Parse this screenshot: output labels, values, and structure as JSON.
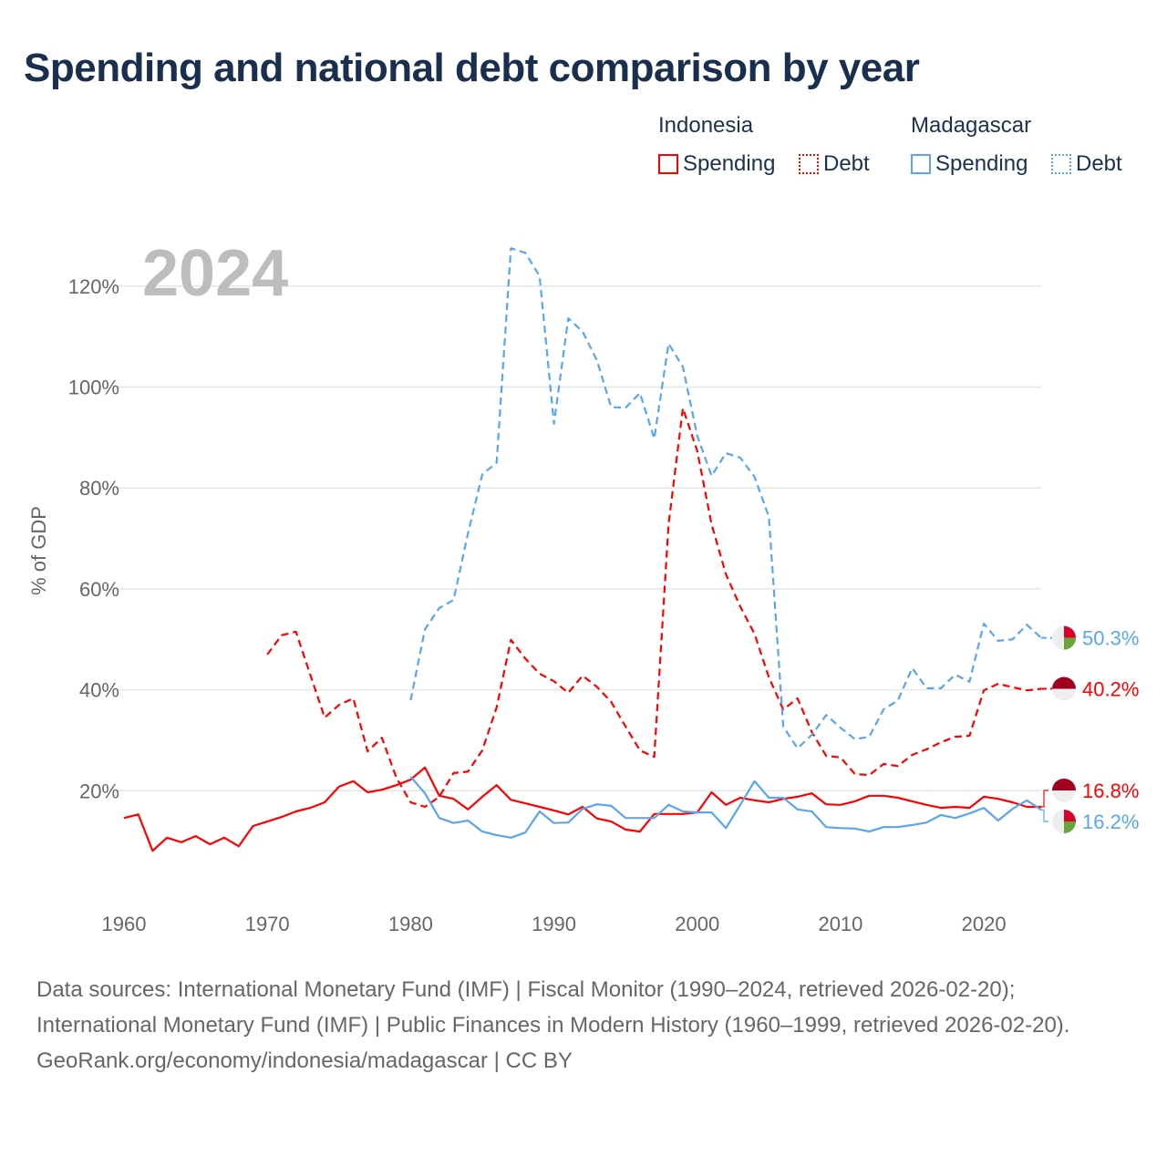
{
  "title": "Spending and national debt comparison by year",
  "legend": {
    "groups": [
      {
        "country": "Indonesia",
        "spending": "Spending",
        "debt": "Debt",
        "color": "#ff0000"
      },
      {
        "country": "Madagascar",
        "spending": "Spending",
        "debt": "Debt",
        "color": "#5aa5ee"
      }
    ]
  },
  "year_watermark": "2024",
  "chart_data": {
    "type": "line",
    "title": "Spending and national debt comparison by year",
    "xlabel": "",
    "ylabel": "% of GDP",
    "xlim": [
      1960,
      2024
    ],
    "ylim": [
      0,
      125
    ],
    "x_ticks": [
      "1960",
      "1970",
      "1980",
      "1990",
      "2000",
      "2010",
      "2020"
    ],
    "x_tick_values": [
      1960,
      1970,
      1980,
      1990,
      2000,
      2010,
      2020
    ],
    "y_ticks": [
      "20%",
      "40%",
      "60%",
      "80%",
      "100%",
      "120%"
    ],
    "y_tick_values": [
      20,
      40,
      60,
      80,
      100,
      120
    ],
    "grid": true,
    "legend_position": "top-right",
    "series": [
      {
        "name": "Indonesia Spending",
        "color": "#ff0000",
        "dash": false,
        "start": 1960,
        "end_label": "16.8%",
        "flag": "indonesia",
        "values": [
          14.6,
          15.3,
          8.1,
          10.7,
          9.8,
          11.0,
          9.4,
          10.7,
          9.0,
          13.0,
          13.9,
          14.8,
          15.9,
          16.6,
          17.7,
          20.8,
          21.9,
          19.7,
          20.2,
          21.1,
          22.2,
          24.6,
          19.0,
          18.4,
          16.3,
          18.8,
          21.1,
          18.2,
          17.5,
          16.8,
          16.1,
          15.3,
          16.8,
          14.5,
          13.9,
          12.3,
          11.9,
          15.4,
          15.4,
          15.4,
          15.7,
          19.7,
          17.2,
          18.6,
          18.1,
          17.7,
          18.4,
          18.8,
          19.5,
          17.3,
          17.2,
          17.9,
          19.0,
          19.0,
          18.6,
          17.9,
          17.2,
          16.6,
          16.8,
          16.6,
          18.8,
          18.4,
          17.7,
          16.8,
          16.8
        ]
      },
      {
        "name": "Indonesia Debt",
        "color": "#ff0000",
        "dash": true,
        "start": 1970,
        "end_label": "40.2%",
        "flag": "indonesia",
        "values": [
          47.0,
          50.8,
          51.5,
          43.0,
          34.5,
          37.0,
          38.3,
          27.8,
          30.5,
          22.6,
          17.7,
          16.8,
          18.8,
          23.5,
          23.8,
          28.0,
          36.5,
          49.9,
          46.2,
          43.2,
          41.7,
          39.4,
          42.8,
          40.6,
          37.6,
          32.7,
          28.0,
          26.7,
          72.8,
          95.8,
          87.3,
          72.8,
          62.9,
          56.5,
          51.1,
          42.5,
          36.1,
          38.3,
          31.6,
          26.9,
          26.6,
          23.3,
          23.1,
          25.3,
          24.9,
          27.1,
          28.2,
          29.6,
          30.7,
          30.9,
          39.9,
          41.2,
          40.5,
          39.9,
          40.2
        ]
      },
      {
        "name": "Madagascar Spending",
        "color": "#5aa5ee",
        "dash": false,
        "start": 1980,
        "end_label": "16.2%",
        "flag": "madagascar",
        "values": [
          22.8,
          19.5,
          14.6,
          13.6,
          14.1,
          11.9,
          11.2,
          10.7,
          11.7,
          15.9,
          13.6,
          13.7,
          16.4,
          17.3,
          17.0,
          14.6,
          14.6,
          14.6,
          17.2,
          15.9,
          15.7,
          15.7,
          12.6,
          17.2,
          21.9,
          18.6,
          18.6,
          16.3,
          15.9,
          12.8,
          12.6,
          12.5,
          11.9,
          12.8,
          12.8,
          13.2,
          13.7,
          15.2,
          14.6,
          15.5,
          16.6,
          14.1,
          16.4,
          18.1,
          16.2
        ]
      },
      {
        "name": "Madagascar Debt",
        "color": "#5aa5ee",
        "dash": true,
        "start": 1980,
        "end_label": "50.3%",
        "flag": "madagascar",
        "values": [
          37.9,
          52.0,
          56.2,
          57.8,
          71.0,
          82.7,
          85.0,
          127.5,
          126.6,
          122.0,
          92.7,
          113.6,
          111.0,
          105.3,
          96.0,
          95.9,
          98.8,
          89.8,
          108.6,
          104.0,
          90.3,
          82.4,
          86.9,
          86.0,
          82.2,
          74.3,
          32.7,
          28.4,
          31.1,
          35.0,
          32.5,
          30.2,
          30.7,
          36.1,
          37.9,
          44.3,
          40.3,
          40.3,
          43.0,
          41.6,
          53.1,
          49.7,
          50.0,
          52.9,
          50.3
        ]
      }
    ]
  },
  "footer": {
    "sources": "Data sources: International Monetary Fund (IMF) | Fiscal Monitor (1990–2024, retrieved 2026-02-20); International Monetary Fund (IMF) | Public Finances in Modern History (1960–1999, retrieved 2026-02-20).",
    "credit": "GeoRank.org/economy/indonesia/madagascar | CC BY"
  }
}
